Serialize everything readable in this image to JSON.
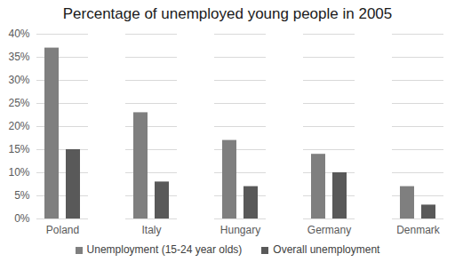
{
  "chart_data": {
    "type": "bar",
    "title": "Percentage of unemployed young people in 2005",
    "categories": [
      "Poland",
      "Italy",
      "Hungary",
      "Germany",
      "Denmark"
    ],
    "series": [
      {
        "name": "Unemployment (15-24 year olds)",
        "color": "#7f7f7f",
        "values": [
          37,
          23,
          17,
          14,
          7
        ]
      },
      {
        "name": "Overall unemployment",
        "color": "#595959",
        "values": [
          15,
          8,
          7,
          10,
          3
        ]
      }
    ],
    "ylim": [
      0,
      40
    ],
    "yticks": [
      {
        "value": 0,
        "label": "0%"
      },
      {
        "value": 5,
        "label": "5%"
      },
      {
        "value": 10,
        "label": "10%"
      },
      {
        "value": 15,
        "label": "15%"
      },
      {
        "value": 20,
        "label": "20%"
      },
      {
        "value": 25,
        "label": "25%"
      },
      {
        "value": 30,
        "label": "30%"
      },
      {
        "value": 35,
        "label": "35%"
      },
      {
        "value": 40,
        "label": "40%"
      }
    ],
    "grid": true,
    "legend": "bottom"
  }
}
